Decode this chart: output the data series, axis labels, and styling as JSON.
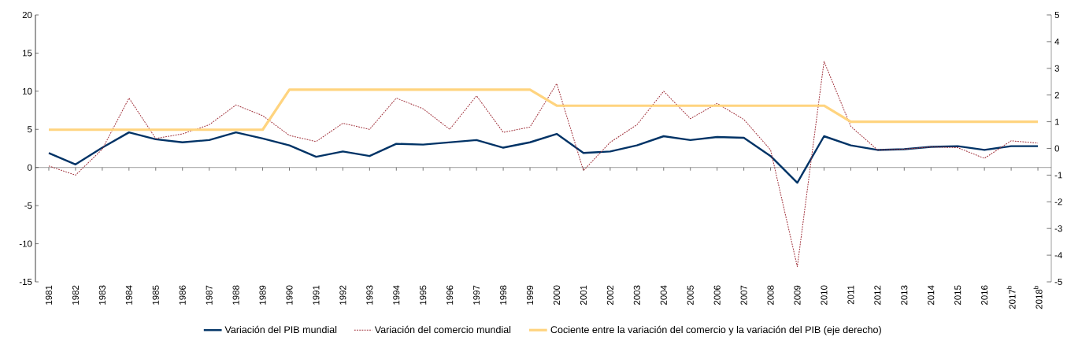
{
  "chart_data": {
    "type": "line",
    "categories": [
      "1981",
      "1982",
      "1983",
      "1984",
      "1985",
      "1986",
      "1987",
      "1988",
      "1989",
      "1990",
      "1991",
      "1992",
      "1993",
      "1994",
      "1995",
      "1996",
      "1997",
      "1998",
      "1999",
      "2000",
      "2001",
      "2002",
      "2003",
      "2004",
      "2005",
      "2006",
      "2007",
      "2008",
      "2009",
      "2010",
      "2011",
      "2012",
      "2013",
      "2014",
      "2015",
      "2016",
      "2017$^{b}$",
      "2018$^{b}$"
    ],
    "series": [
      {
        "name": "Variación del PIB mundial",
        "color": "#003366",
        "line_style": "solid",
        "values": [
          1.9,
          0.4,
          2.6,
          4.6,
          3.7,
          3.3,
          3.6,
          4.6,
          3.8,
          2.9,
          1.4,
          2.1,
          1.5,
          3.1,
          3.0,
          3.3,
          3.6,
          2.6,
          3.3,
          4.4,
          1.9,
          2.1,
          2.9,
          4.1,
          3.6,
          4.0,
          3.9,
          1.5,
          -2.0,
          4.1,
          2.9,
          2.3,
          2.4,
          2.7,
          2.8,
          2.3,
          2.8,
          2.8
        ]
      },
      {
        "name": "Variación del comercio mundial",
        "color": "#a0303a",
        "line_style": "dotted",
        "values": [
          0.2,
          -1.0,
          2.4,
          9.1,
          3.8,
          4.4,
          5.6,
          8.2,
          6.8,
          4.2,
          3.4,
          5.8,
          5.0,
          9.1,
          7.7,
          5.0,
          9.4,
          4.6,
          5.3,
          11.0,
          -0.4,
          3.3,
          5.6,
          10.0,
          6.4,
          8.4,
          6.3,
          2.3,
          -13.0,
          13.9,
          5.4,
          2.3,
          2.4,
          2.7,
          2.6,
          1.2,
          3.5,
          3.2
        ]
      },
      {
        "name": "Cociente entre la variación del comercio y la variación del PIB (eje derecho)",
        "color": "#ffd47f",
        "line_style": "solid",
        "axis": "y2",
        "values": [
          0.7,
          0.7,
          0.7,
          0.7,
          0.7,
          0.7,
          0.7,
          0.7,
          0.7,
          2.2,
          2.2,
          2.2,
          2.2,
          2.2,
          2.2,
          2.2,
          2.2,
          2.2,
          2.2,
          1.6,
          1.6,
          1.6,
          1.6,
          1.6,
          1.6,
          1.6,
          1.6,
          1.6,
          1.6,
          1.6,
          1.0,
          1.0,
          1.0,
          1.0,
          1.0,
          1.0,
          1.0,
          1.0
        ]
      }
    ],
    "ylim": [
      -15,
      20
    ],
    "yticks": [
      -15,
      -10,
      -5,
      0,
      5,
      10,
      15,
      20
    ],
    "y2lim": [
      -5,
      5
    ],
    "y2ticks": [
      -5,
      -4,
      -3,
      -2,
      -1,
      0,
      1,
      2,
      3,
      4,
      5
    ],
    "legend": "bottom",
    "marker": "none"
  }
}
